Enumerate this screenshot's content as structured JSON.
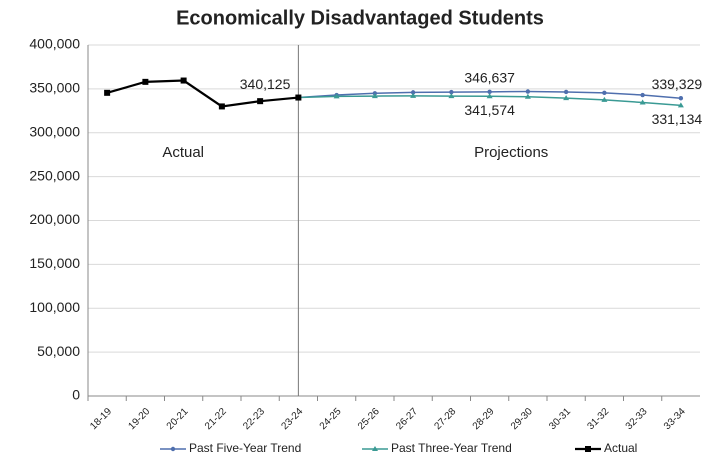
{
  "chart_data": {
    "type": "line",
    "title": "Economically Disadvantaged Students",
    "categories": [
      "18-19",
      "19-20",
      "20-21",
      "21-22",
      "22-23",
      "23-24",
      "24-25",
      "25-26",
      "26-27",
      "27-28",
      "28-29",
      "29-30",
      "30-31",
      "31-32",
      "32-33",
      "33-34"
    ],
    "series": [
      {
        "name": "Past Five-Year Trend",
        "color": "#4f6fae",
        "marker": "circle",
        "values": [
          null,
          null,
          null,
          null,
          null,
          340125,
          343000,
          345000,
          346000,
          346300,
          346637,
          347000,
          346500,
          345500,
          343000,
          339329
        ],
        "value_labels": [
          null,
          null,
          null,
          null,
          null,
          null,
          null,
          null,
          null,
          null,
          "346,637",
          null,
          null,
          null,
          null,
          "339,329"
        ]
      },
      {
        "name": "Past Three-Year Trend",
        "color": "#3a9a94",
        "marker": "triangle",
        "values": [
          null,
          null,
          null,
          null,
          null,
          340125,
          341500,
          341800,
          342000,
          341800,
          341574,
          341000,
          339500,
          337500,
          334500,
          331134
        ],
        "value_labels": [
          null,
          null,
          null,
          null,
          null,
          null,
          null,
          null,
          null,
          null,
          "341,574",
          null,
          null,
          null,
          null,
          "331,134"
        ]
      },
      {
        "name": "Actual",
        "color": "#000000",
        "marker": "square",
        "values": [
          345500,
          358000,
          359500,
          330000,
          336000,
          340125,
          null,
          null,
          null,
          null,
          null,
          null,
          null,
          null,
          null,
          null
        ],
        "value_labels": [
          null,
          null,
          null,
          null,
          null,
          "340,125",
          null,
          null,
          null,
          null,
          null,
          null,
          null,
          null,
          null,
          null
        ]
      }
    ],
    "annotations": [
      "Actual",
      "Projections"
    ],
    "ylim": [
      0,
      400000
    ],
    "yticks": [
      {
        "value": 0,
        "label": "0"
      },
      {
        "value": 50000,
        "label": "50,000"
      },
      {
        "value": 100000,
        "label": "100,000"
      },
      {
        "value": 150000,
        "label": "150,000"
      },
      {
        "value": 200000,
        "label": "200,000"
      },
      {
        "value": 250000,
        "label": "250,000"
      },
      {
        "value": 300000,
        "label": "300,000"
      },
      {
        "value": 350000,
        "label": "350,000"
      },
      {
        "value": 400000,
        "label": "400,000"
      }
    ],
    "grid": true,
    "legend": "bottom"
  }
}
